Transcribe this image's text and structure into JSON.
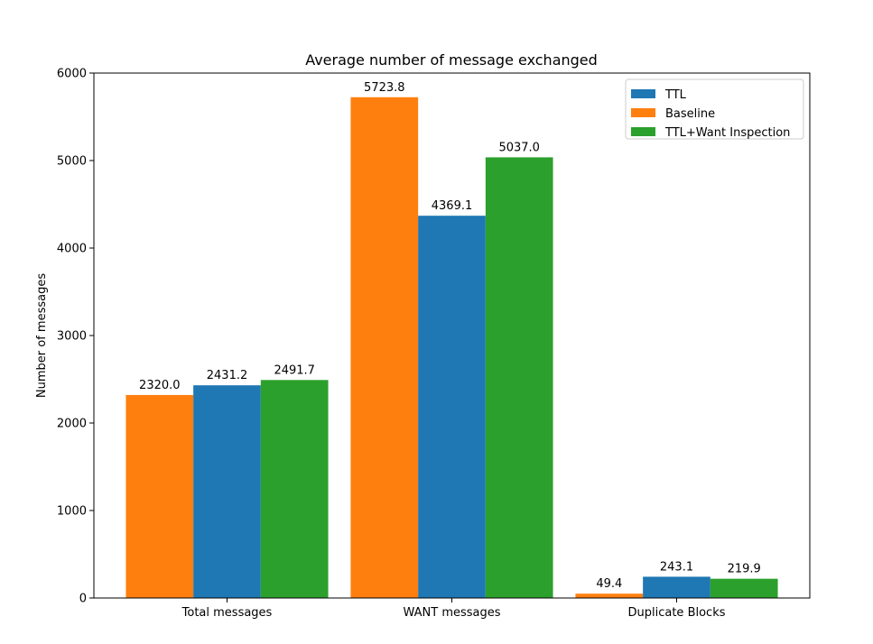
{
  "chart_data": {
    "type": "bar",
    "title": "Average number of message exchanged",
    "xlabel": "",
    "ylabel": "Number of messages",
    "ylim": [
      0,
      6000
    ],
    "yticks": [
      0,
      1000,
      2000,
      3000,
      4000,
      5000,
      6000
    ],
    "categories": [
      "Total messages",
      "WANT messages",
      "Duplicate Blocks"
    ],
    "series": [
      {
        "name": "Baseline",
        "color": "#ff7f0e",
        "values": [
          2320.0,
          5723.8,
          49.4
        ],
        "labels": [
          "2320.0",
          "5723.8",
          "49.4"
        ]
      },
      {
        "name": "TTL",
        "color": "#1f77b4",
        "values": [
          2431.2,
          4369.1,
          243.1
        ],
        "labels": [
          "2431.2",
          "4369.1",
          "243.1"
        ]
      },
      {
        "name": "TTL+Want Inspection",
        "color": "#2ca02c",
        "values": [
          2491.7,
          5037.0,
          219.9
        ],
        "labels": [
          "2491.7",
          "5037.0",
          "219.9"
        ]
      }
    ],
    "legend": {
      "placement": "top-right",
      "order": [
        "TTL",
        "Baseline",
        "TTL+Want Inspection"
      ]
    },
    "grid": false
  }
}
